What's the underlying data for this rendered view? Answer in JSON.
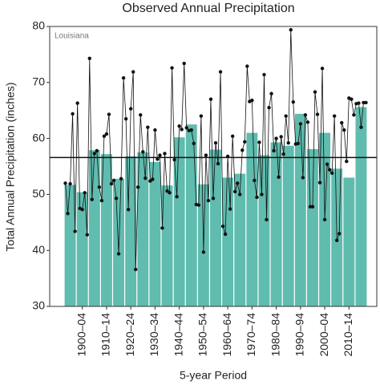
{
  "chart_data": {
    "type": "bar",
    "title": "Observed Annual Precipitation",
    "annotation": "Louisiana",
    "x_label": "5-year Period",
    "y_label": "Total Annual Precipitation (inches)",
    "categories": [
      null,
      "1900–04",
      null,
      "1910–14",
      null,
      "1920–24",
      null,
      "1930–34",
      null,
      "1940–44",
      null,
      "1950–54",
      null,
      "1960–64",
      null,
      "1970–74",
      null,
      "1980–84",
      null,
      "1990–94",
      null,
      "2000–04",
      null,
      "2010–14",
      null
    ],
    "values": [
      51.7,
      50.4,
      57.9,
      57.2,
      52.8,
      56.8,
      57.5,
      55.8,
      51.6,
      60.2,
      62.5,
      51.8,
      58.0,
      53.0,
      53.7,
      61.0,
      57.0,
      59.3,
      58.7,
      64.4,
      58.1,
      61.0,
      54.6,
      53.0,
      65.6
    ],
    "color": "#5fbcae",
    "ylim": [
      30,
      80
    ],
    "yticks": [
      30,
      40,
      50,
      60,
      70,
      80
    ],
    "xlim": [
      1895,
      2020
    ],
    "line": {
      "type": "line",
      "color": "#111111",
      "x": [
        1895,
        1896,
        1897,
        1898,
        1899,
        1900,
        1901,
        1902,
        1903,
        1904,
        1905,
        1906,
        1907,
        1908,
        1909,
        1910,
        1911,
        1912,
        1913,
        1914,
        1915,
        1916,
        1917,
        1918,
        1919,
        1920,
        1921,
        1922,
        1923,
        1924,
        1925,
        1926,
        1927,
        1928,
        1929,
        1930,
        1931,
        1932,
        1933,
        1934,
        1935,
        1936,
        1937,
        1938,
        1939,
        1940,
        1941,
        1942,
        1943,
        1944,
        1945,
        1946,
        1947,
        1948,
        1949,
        1950,
        1951,
        1952,
        1953,
        1954,
        1955,
        1956,
        1957,
        1958,
        1959,
        1960,
        1961,
        1962,
        1963,
        1964,
        1965,
        1966,
        1967,
        1968,
        1969,
        1970,
        1971,
        1972,
        1973,
        1974,
        1975,
        1976,
        1977,
        1978,
        1979,
        1980,
        1981,
        1982,
        1983,
        1984,
        1985,
        1986,
        1987,
        1988,
        1989,
        1990,
        1991,
        1992,
        1993,
        1994,
        1995,
        1996,
        1997,
        1998,
        1999,
        2000,
        2001,
        2002,
        2003,
        2004,
        2005,
        2006,
        2007,
        2008,
        2009,
        2010,
        2011,
        2012,
        2013,
        2014,
        2015,
        2016,
        2017,
        2018,
        2019
      ],
      "values": [
        52.0,
        46.6,
        51.9,
        64.4,
        43.4,
        66.3,
        47.5,
        47.3,
        50.3,
        42.8,
        74.3,
        49.1,
        57.3,
        57.8,
        51.3,
        48.9,
        60.4,
        60.8,
        64.3,
        51.9,
        52.5,
        49.3,
        39.4,
        52.8,
        70.8,
        63.5,
        47.3,
        65.3,
        71.9,
        36.6,
        51.3,
        64.2,
        57.6,
        52.9,
        62.0,
        52.4,
        52.7,
        61.5,
        56.3,
        57.0,
        44.0,
        57.3,
        50.6,
        50.3,
        72.6,
        56.2,
        49.6,
        62.2,
        61.6,
        73.4,
        61.9,
        61.4,
        61.5,
        59.1,
        48.2,
        48.1,
        64.0,
        39.7,
        57.0,
        48.9,
        67.0,
        49.3,
        59.2,
        55.5,
        71.9,
        44.3,
        42.9,
        56.8,
        47.4,
        60.4,
        50.5,
        52.0,
        50.0,
        57.9,
        59.4,
        72.9,
        66.6,
        66.8,
        52.5,
        49.5,
        59.3,
        50.0,
        71.4,
        45.5,
        65.5,
        68.0,
        57.8,
        60.0,
        53.1,
        60.3,
        57.2,
        64.0,
        59.2,
        79.4,
        66.5,
        59.0,
        59.1,
        62.6,
        53.0,
        64.2,
        62.9,
        47.8,
        47.8,
        68.3,
        64.3,
        52.1,
        72.5,
        45.5,
        55.4,
        54.4,
        53.8,
        64.0,
        41.8,
        43.0,
        62.8,
        61.5,
        55.9,
        67.2,
        67.0,
        64.2,
        66.2,
        66.3,
        62.0,
        66.4,
        66.4
      ]
    },
    "average": 56.6,
    "average_color": "#111111"
  }
}
